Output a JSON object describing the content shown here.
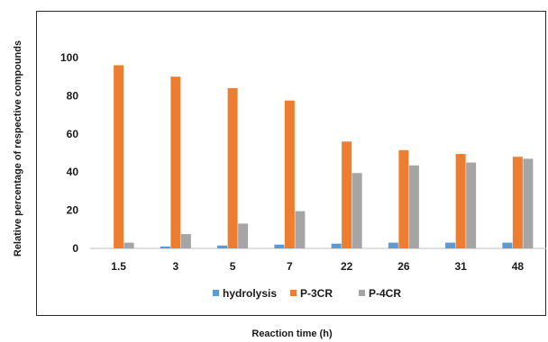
{
  "chart_data": {
    "type": "bar",
    "title": "",
    "xlabel": "Reaction time (h)",
    "ylabel": "Relative percentage of respective compounds",
    "categories": [
      "1.5",
      "3",
      "5",
      "7",
      "22",
      "26",
      "31",
      "48"
    ],
    "series": [
      {
        "name": "hydrolysis",
        "color": "#5b9bd5",
        "values": [
          0,
          1,
          1.5,
          2,
          2.5,
          3,
          3,
          3
        ]
      },
      {
        "name": "P-3CR",
        "color": "#ed7d31",
        "values": [
          96,
          90,
          84,
          77.5,
          56,
          51.5,
          49.5,
          48
        ]
      },
      {
        "name": "P-4CR",
        "color": "#a5a5a5",
        "values": [
          3,
          7.5,
          13,
          19.5,
          39.5,
          43.5,
          45,
          47
        ]
      }
    ],
    "ylim": [
      0,
      100
    ],
    "yticks": [
      0,
      20,
      40,
      60,
      80,
      100
    ],
    "grid": false,
    "legend_position": "bottom"
  }
}
